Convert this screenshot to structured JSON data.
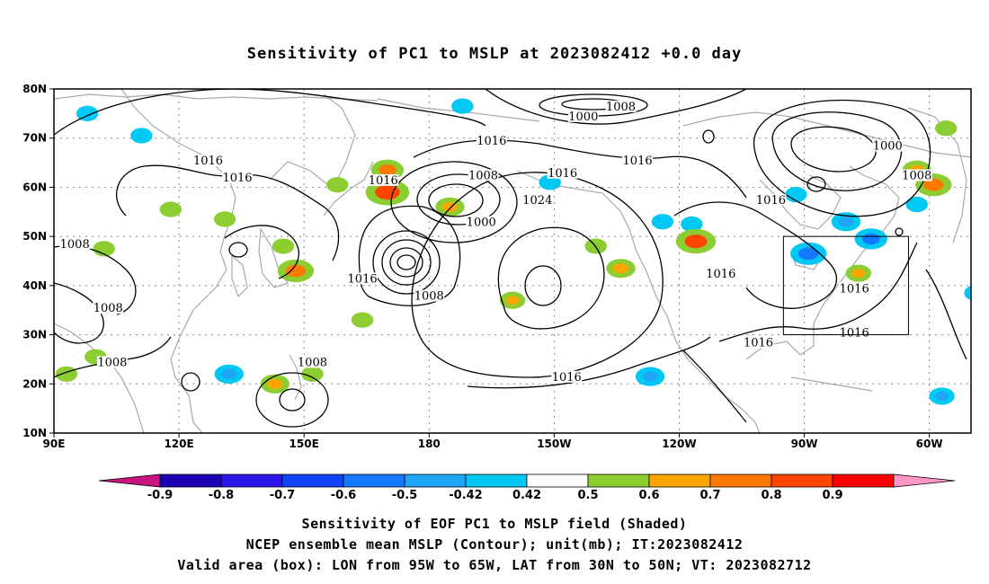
{
  "title": "Sensitivity of PC1 to MSLP at 2023082412 +0.0 day",
  "map": {
    "lon_range": [
      90,
      310
    ],
    "lat_range": [
      10,
      80
    ],
    "lat_ticks": [
      {
        "value": 80,
        "label": "80N"
      },
      {
        "value": 70,
        "label": "70N"
      },
      {
        "value": 60,
        "label": "60N"
      },
      {
        "value": 50,
        "label": "50N"
      },
      {
        "value": 40,
        "label": "40N"
      },
      {
        "value": 30,
        "label": "30N"
      },
      {
        "value": 20,
        "label": "20N"
      },
      {
        "value": 10,
        "label": "10N"
      }
    ],
    "lon_ticks": [
      {
        "value": 90,
        "label": "90E"
      },
      {
        "value": 120,
        "label": "120E"
      },
      {
        "value": 150,
        "label": "150E"
      },
      {
        "value": 180,
        "label": "180"
      },
      {
        "value": 210,
        "label": "150W"
      },
      {
        "value": 240,
        "label": "120W"
      },
      {
        "value": 270,
        "label": "90W"
      },
      {
        "value": 300,
        "label": "60W"
      }
    ],
    "grid": "dotted",
    "valid_box": {
      "lon": [
        265,
        295
      ],
      "lat": [
        30,
        50
      ]
    },
    "contour_interval_mb": 4,
    "contour_labels": [
      {
        "lon": 127,
        "lat": 65,
        "text": "1016"
      },
      {
        "lon": 134,
        "lat": 61.5,
        "text": "1016"
      },
      {
        "lon": 95,
        "lat": 48,
        "text": "1008"
      },
      {
        "lon": 103,
        "lat": 35,
        "text": "1008"
      },
      {
        "lon": 104,
        "lat": 24,
        "text": "1008"
      },
      {
        "lon": 152,
        "lat": 24,
        "text": "1008"
      },
      {
        "lon": 164,
        "lat": 41,
        "text": "1016"
      },
      {
        "lon": 169,
        "lat": 61,
        "text": "1016"
      },
      {
        "lon": 180,
        "lat": 37.5,
        "text": "1008"
      },
      {
        "lon": 192.5,
        "lat": 52.5,
        "text": "1000"
      },
      {
        "lon": 193,
        "lat": 62,
        "text": "1008"
      },
      {
        "lon": 195,
        "lat": 69,
        "text": "1016"
      },
      {
        "lon": 217,
        "lat": 74,
        "text": "1000"
      },
      {
        "lon": 226,
        "lat": 76,
        "text": "1008"
      },
      {
        "lon": 212,
        "lat": 62.5,
        "text": "1016"
      },
      {
        "lon": 230,
        "lat": 65,
        "text": "1016"
      },
      {
        "lon": 206,
        "lat": 57,
        "text": "1024"
      },
      {
        "lon": 250,
        "lat": 42,
        "text": "1016"
      },
      {
        "lon": 213,
        "lat": 21,
        "text": "1016"
      },
      {
        "lon": 262,
        "lat": 57,
        "text": "1016"
      },
      {
        "lon": 259,
        "lat": 28,
        "text": "1016"
      },
      {
        "lon": 282,
        "lat": 39,
        "text": "1016"
      },
      {
        "lon": 282,
        "lat": 30,
        "text": "1016"
      },
      {
        "lon": 290,
        "lat": 68,
        "text": "1000"
      },
      {
        "lon": 297,
        "lat": 62,
        "text": "1008"
      }
    ],
    "sensitivity_patches": [
      {
        "lon": 98,
        "lat": 75,
        "sign": "negative",
        "value": -0.45
      },
      {
        "lon": 111,
        "lat": 70.5,
        "sign": "negative",
        "value": -0.45
      },
      {
        "lon": 188,
        "lat": 76.5,
        "sign": "negative",
        "value": -0.45
      },
      {
        "lon": 132,
        "lat": 22,
        "sign": "negative",
        "value": -0.55
      },
      {
        "lon": 271,
        "lat": 46.5,
        "sign": "negative",
        "value": -0.65
      },
      {
        "lon": 280,
        "lat": 53,
        "sign": "negative",
        "value": -0.55
      },
      {
        "lon": 286,
        "lat": 49.5,
        "sign": "negative",
        "value": -0.6
      },
      {
        "lon": 297,
        "lat": 56.5,
        "sign": "negative",
        "value": -0.45
      },
      {
        "lon": 268,
        "lat": 58.5,
        "sign": "negative",
        "value": -0.45
      },
      {
        "lon": 303,
        "lat": 17.5,
        "sign": "negative",
        "value": -0.5
      },
      {
        "lon": 233,
        "lat": 21.5,
        "sign": "negative",
        "value": -0.55
      },
      {
        "lon": 243,
        "lat": 52.5,
        "sign": "negative",
        "value": -0.45
      },
      {
        "lon": 236,
        "lat": 53,
        "sign": "negative",
        "value": -0.45
      },
      {
        "lon": 311,
        "lat": 38.5,
        "sign": "negative",
        "value": -0.45
      },
      {
        "lon": 209,
        "lat": 61,
        "sign": "negative",
        "value": -0.45
      },
      {
        "lon": 170,
        "lat": 59,
        "sign": "positive",
        "value": 0.75
      },
      {
        "lon": 148,
        "lat": 43,
        "sign": "positive",
        "value": 0.65
      },
      {
        "lon": 244,
        "lat": 49,
        "sign": "positive",
        "value": 0.7
      },
      {
        "lon": 301,
        "lat": 60.5,
        "sign": "positive",
        "value": 0.65
      },
      {
        "lon": 297,
        "lat": 63.5,
        "sign": "positive",
        "value": 0.55
      },
      {
        "lon": 185,
        "lat": 56,
        "sign": "positive",
        "value": 0.55
      },
      {
        "lon": 170,
        "lat": 63.5,
        "sign": "positive",
        "value": 0.6
      },
      {
        "lon": 200,
        "lat": 37,
        "sign": "positive",
        "value": 0.5
      },
      {
        "lon": 143,
        "lat": 20,
        "sign": "positive",
        "value": 0.55
      },
      {
        "lon": 226,
        "lat": 43.5,
        "sign": "positive",
        "value": 0.55
      },
      {
        "lon": 152,
        "lat": 22,
        "sign": "positive",
        "value": 0.45
      },
      {
        "lon": 283,
        "lat": 42.5,
        "sign": "positive",
        "value": 0.5
      },
      {
        "lon": 131,
        "lat": 53.5,
        "sign": "positive",
        "value": 0.45
      },
      {
        "lon": 158,
        "lat": 60.5,
        "sign": "positive",
        "value": 0.45
      },
      {
        "lon": 118,
        "lat": 55.5,
        "sign": "positive",
        "value": 0.45
      },
      {
        "lon": 220,
        "lat": 48,
        "sign": "positive",
        "value": 0.45
      },
      {
        "lon": 93,
        "lat": 22,
        "sign": "positive",
        "value": 0.45
      },
      {
        "lon": 100,
        "lat": 25.5,
        "sign": "positive",
        "value": 0.45
      },
      {
        "lon": 304,
        "lat": 72,
        "sign": "positive",
        "value": 0.45
      },
      {
        "lon": 164,
        "lat": 33,
        "sign": "positive",
        "value": 0.45
      },
      {
        "lon": 102,
        "lat": 47.5,
        "sign": "positive",
        "value": 0.45
      },
      {
        "lon": 145,
        "lat": 48,
        "sign": "positive",
        "value": 0.45
      }
    ]
  },
  "colorbar": {
    "labels": [
      "-0.9",
      "-0.8",
      "-0.7",
      "-0.6",
      "-0.5",
      "-0.42",
      "0.42",
      "0.5",
      "0.6",
      "0.7",
      "0.8",
      "0.9"
    ],
    "colors": [
      "#1c00b4",
      "#2a16e6",
      "#0f45f5",
      "#1479ff",
      "#1ea5f5",
      "#00c8f5",
      "#ffffff",
      "#8ccd32",
      "#ffa500",
      "#ff7800",
      "#ff4600",
      "#ff0000"
    ],
    "low_end_color": "#c8157d",
    "high_end_color": "#ff96c8"
  },
  "captions": [
    "Sensitivity of EOF PC1 to MSLP field (Shaded)",
    "NCEP ensemble mean MSLP (Contour); unit(mb); IT:2023082412",
    "Valid area (box): LON from 95W to 65W, LAT from 30N to 50N; VT: 2023082712"
  ]
}
